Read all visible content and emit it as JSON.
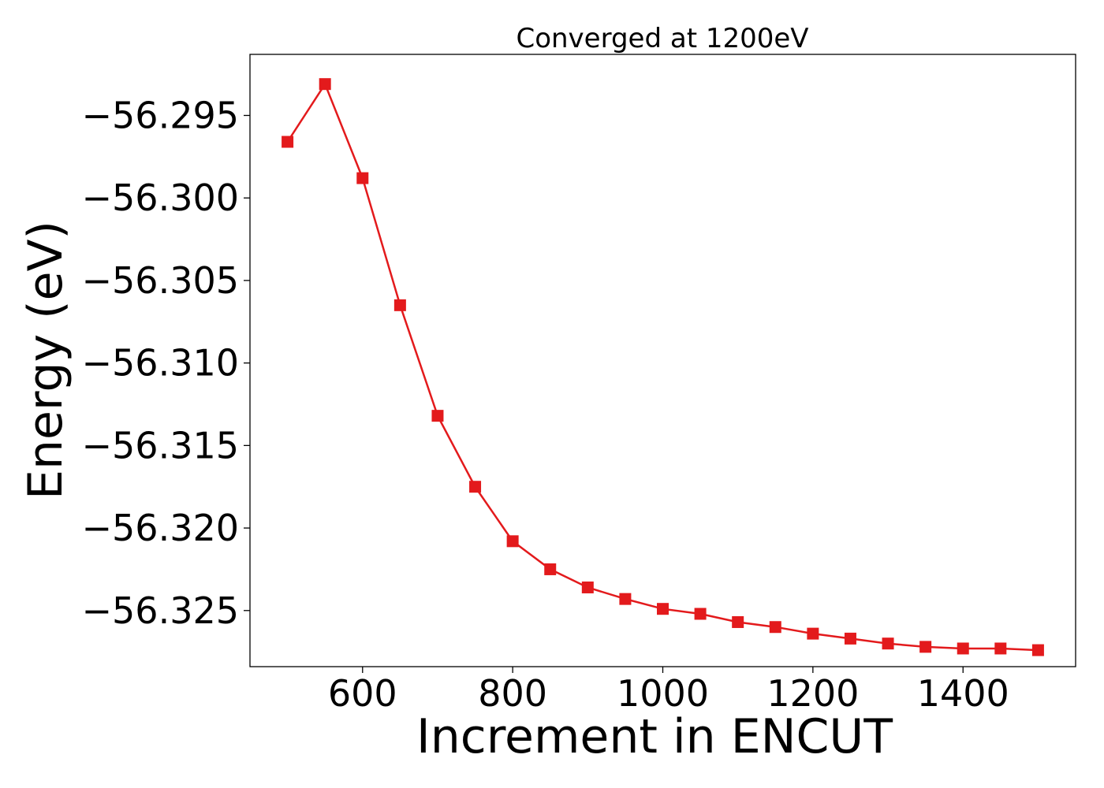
{
  "chart_data": {
    "type": "line",
    "title": "Converged at 1200eV",
    "xlabel": "Increment in ENCUT",
    "ylabel": "Energy (eV)",
    "xlim": [
      450,
      1550
    ],
    "ylim": [
      -56.3284,
      -56.2913
    ],
    "xticks": [
      600,
      800,
      1000,
      1200,
      1400
    ],
    "xtick_labels": [
      "600",
      "800",
      "1000",
      "1200",
      "1400"
    ],
    "yticks": [
      -56.295,
      -56.3,
      -56.305,
      -56.31,
      -56.315,
      -56.32,
      -56.325
    ],
    "ytick_labels": [
      "−56.295",
      "−56.300",
      "−56.305",
      "−56.310",
      "−56.315",
      "−56.320",
      "−56.325"
    ],
    "grid": false,
    "color": "#e31a1c",
    "marker": "square",
    "x": [
      500,
      550,
      600,
      650,
      700,
      750,
      800,
      850,
      900,
      950,
      1000,
      1050,
      1100,
      1150,
      1200,
      1250,
      1300,
      1350,
      1400,
      1450,
      1500
    ],
    "y": [
      -56.2966,
      -56.2931,
      -56.2988,
      -56.3065,
      -56.3132,
      -56.3175,
      -56.3208,
      -56.3225,
      -56.3236,
      -56.3243,
      -56.3249,
      -56.3252,
      -56.3257,
      -56.326,
      -56.3264,
      -56.3267,
      -56.327,
      -56.3272,
      -56.3273,
      -56.3273,
      -56.3274
    ]
  }
}
